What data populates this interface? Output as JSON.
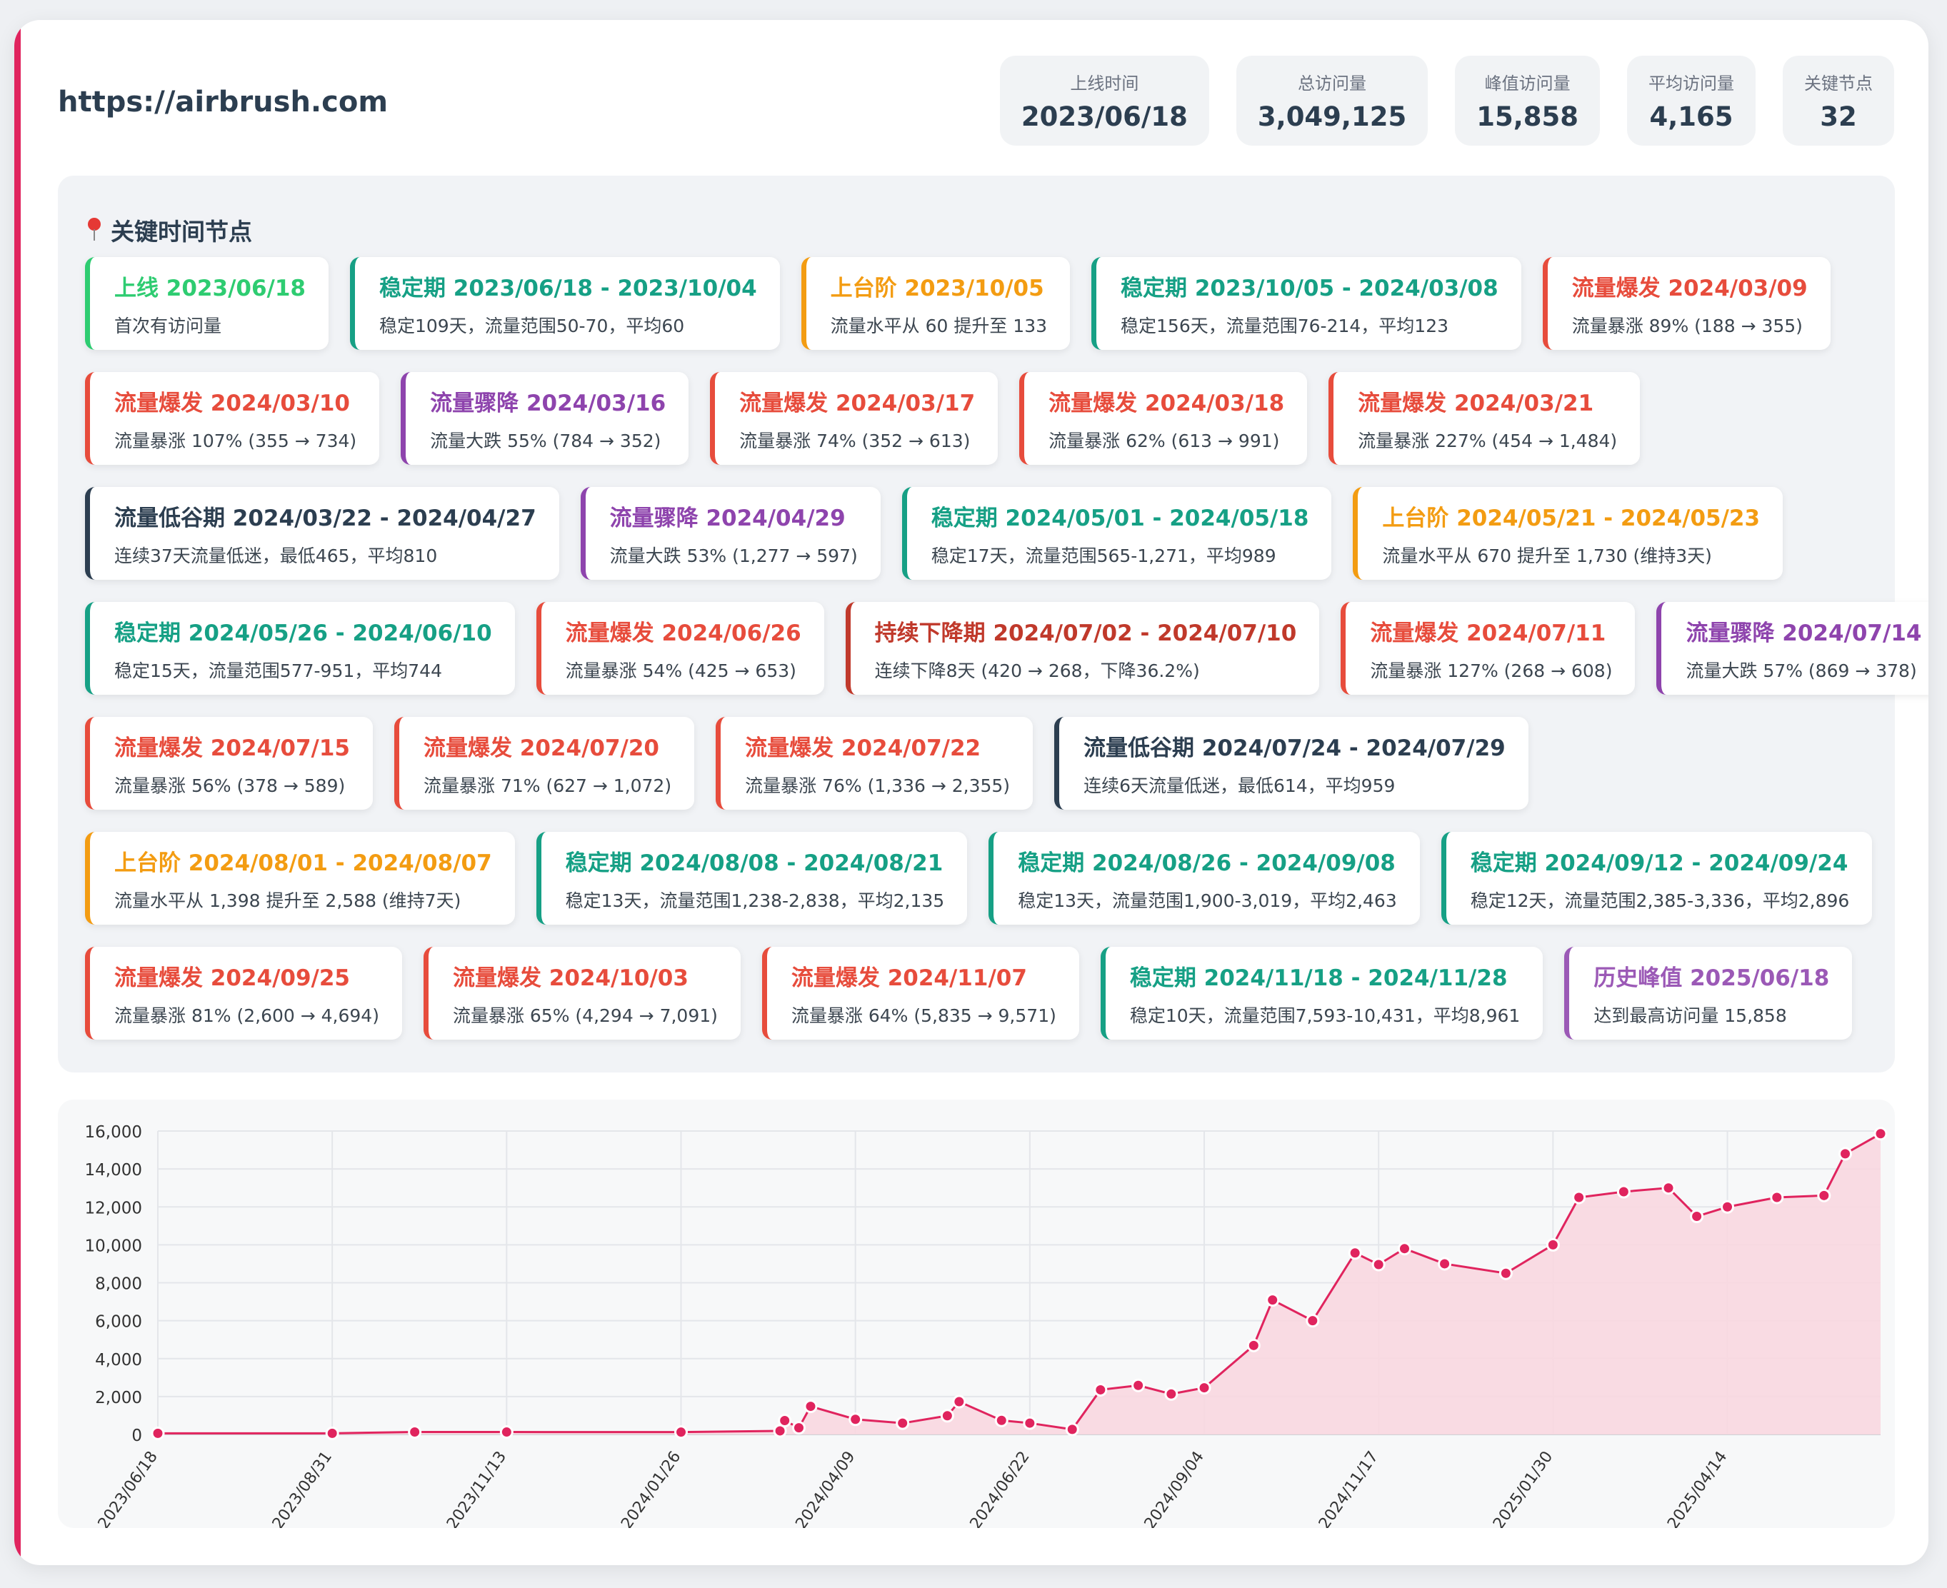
{
  "header": {
    "url": "https://airbrush.com",
    "stats": [
      {
        "label": "上线时间",
        "value": "2023/06/18"
      },
      {
        "label": "总访问量",
        "value": "3,049,125"
      },
      {
        "label": "峰值访问量",
        "value": "15,858"
      },
      {
        "label": "平均访问量",
        "value": "4,165"
      },
      {
        "label": "关键节点",
        "value": "32"
      }
    ]
  },
  "events_title": "关键时间节点",
  "events": [
    {
      "type": "launch",
      "title": "上线 2023/06/18",
      "desc": "首次有访问量"
    },
    {
      "type": "stable",
      "title": "稳定期 2023/06/18 - 2023/10/04",
      "desc": "稳定109天，流量范围50-70，平均60"
    },
    {
      "type": "step",
      "title": "上台阶 2023/10/05",
      "desc": "流量水平从 60 提升至 133"
    },
    {
      "type": "stable",
      "title": "稳定期 2023/10/05 - 2024/03/08",
      "desc": "稳定156天，流量范围76-214，平均123"
    },
    {
      "type": "burst",
      "title": "流量爆发 2024/03/09",
      "desc": "流量暴涨 89% (188 → 355)"
    },
    {
      "type": "burst",
      "title": "流量爆发 2024/03/10",
      "desc": "流量暴涨 107% (355 → 734)"
    },
    {
      "type": "drop",
      "title": "流量骤降 2024/03/16",
      "desc": "流量大跌 55% (784 → 352)"
    },
    {
      "type": "burst",
      "title": "流量爆发 2024/03/17",
      "desc": "流量暴涨 74% (352 → 613)"
    },
    {
      "type": "burst",
      "title": "流量爆发 2024/03/18",
      "desc": "流量暴涨 62% (613 → 991)"
    },
    {
      "type": "burst",
      "title": "流量爆发 2024/03/21",
      "desc": "流量暴涨 227% (454 → 1,484)"
    },
    {
      "type": "valley",
      "title": "流量低谷期 2024/03/22 - 2024/04/27",
      "desc": "连续37天流量低迷，最低465，平均810"
    },
    {
      "type": "drop",
      "title": "流量骤降 2024/04/29",
      "desc": "流量大跌 53% (1,277 → 597)"
    },
    {
      "type": "stable",
      "title": "稳定期 2024/05/01 - 2024/05/18",
      "desc": "稳定17天，流量范围565-1,271，平均989"
    },
    {
      "type": "step",
      "title": "上台阶 2024/05/21 - 2024/05/23",
      "desc": "流量水平从 670 提升至 1,730 (维持3天)"
    },
    {
      "type": "stable",
      "title": "稳定期 2024/05/26 - 2024/06/10",
      "desc": "稳定15天，流量范围577-951，平均744"
    },
    {
      "type": "burst",
      "title": "流量爆发 2024/06/26",
      "desc": "流量暴涨 54% (425 → 653)"
    },
    {
      "type": "decline",
      "title": "持续下降期 2024/07/02 - 2024/07/10",
      "desc": "连续下降8天 (420 → 268，下降36.2%)"
    },
    {
      "type": "burst",
      "title": "流量爆发 2024/07/11",
      "desc": "流量暴涨 127% (268 → 608)"
    },
    {
      "type": "drop",
      "title": "流量骤降 2024/07/14",
      "desc": "流量大跌 57% (869 → 378)"
    },
    {
      "type": "burst",
      "title": "流量爆发 2024/07/15",
      "desc": "流量暴涨 56% (378 → 589)"
    },
    {
      "type": "burst",
      "title": "流量爆发 2024/07/20",
      "desc": "流量暴涨 71% (627 → 1,072)"
    },
    {
      "type": "burst",
      "title": "流量爆发 2024/07/22",
      "desc": "流量暴涨 76% (1,336 → 2,355)"
    },
    {
      "type": "valley",
      "title": "流量低谷期 2024/07/24 - 2024/07/29",
      "desc": "连续6天流量低迷，最低614，平均959"
    },
    {
      "type": "step",
      "title": "上台阶 2024/08/01 - 2024/08/07",
      "desc": "流量水平从 1,398 提升至 2,588 (维持7天)"
    },
    {
      "type": "stable",
      "title": "稳定期 2024/08/08 - 2024/08/21",
      "desc": "稳定13天，流量范围1,238-2,838，平均2,135"
    },
    {
      "type": "stable",
      "title": "稳定期 2024/08/26 - 2024/09/08",
      "desc": "稳定13天，流量范围1,900-3,019，平均2,463"
    },
    {
      "type": "stable",
      "title": "稳定期 2024/09/12 - 2024/09/24",
      "desc": "稳定12天，流量范围2,385-3,336，平均2,896"
    },
    {
      "type": "burst",
      "title": "流量爆发 2024/09/25",
      "desc": "流量暴涨 81% (2,600 → 4,694)"
    },
    {
      "type": "burst",
      "title": "流量爆发 2024/10/03",
      "desc": "流量暴涨 65% (4,294 → 7,091)"
    },
    {
      "type": "burst",
      "title": "流量爆发 2024/11/07",
      "desc": "流量暴涨 64% (5,835 → 9,571)"
    },
    {
      "type": "stable",
      "title": "稳定期 2024/11/18 - 2024/11/28",
      "desc": "稳定10天，流量范围7,593-10,431，平均8,961"
    },
    {
      "type": "peak",
      "title": "历史峰值 2025/06/18",
      "desc": "达到最高访问量 15,858"
    }
  ],
  "colors": {
    "launch": "#2ecc71",
    "stable": "#16a085",
    "step": "#f39c12",
    "burst": "#e74c3c",
    "drop": "#8e44ad",
    "valley": "#2c3e50",
    "decline": "#c0392b",
    "peak": "#9b59b6",
    "line": "#e0245e",
    "area": "#f8d7e0"
  },
  "chart_data": {
    "type": "area",
    "ylim": [
      0,
      16000
    ],
    "y_ticks": [
      "0",
      "2,000",
      "4,000",
      "6,000",
      "8,000",
      "10,000",
      "12,000",
      "14,000",
      "16,000"
    ],
    "x_tick_labels": [
      "2023/06/18",
      "2023/08/31",
      "2023/11/13",
      "2024/01/26",
      "2024/04/09",
      "2024/06/22",
      "2024/09/04",
      "2024/11/17",
      "2025/01/30",
      "2025/04/14"
    ],
    "grid": true,
    "series": [
      {
        "x": [
          "2023/06/18",
          "2023/08/31",
          "2023/10/05",
          "2023/11/13",
          "2024/01/26",
          "2024/03/08",
          "2024/03/10",
          "2024/03/16",
          "2024/03/21",
          "2024/04/09",
          "2024/04/29",
          "2024/05/18",
          "2024/05/23",
          "2024/06/10",
          "2024/06/22",
          "2024/07/10",
          "2024/07/22",
          "2024/08/07",
          "2024/08/21",
          "2024/09/04",
          "2024/09/25",
          "2024/10/03",
          "2024/10/20",
          "2024/11/07",
          "2024/11/17",
          "2024/11/28",
          "2024/12/15",
          "2025/01/10",
          "2025/01/30",
          "2025/02/10",
          "2025/03/01",
          "2025/03/20",
          "2025/04/01",
          "2025/04/14",
          "2025/05/05",
          "2025/05/25",
          "2025/06/03",
          "2025/06/18"
        ],
        "values": [
          60,
          60,
          133,
          130,
          125,
          190,
          734,
          352,
          1484,
          800,
          597,
          989,
          1730,
          744,
          600,
          268,
          2355,
          2588,
          2135,
          2463,
          4694,
          7091,
          6000,
          9571,
          8961,
          9800,
          9000,
          8500,
          10000,
          12500,
          12800,
          13000,
          11500,
          12000,
          12500,
          12600,
          14800,
          15858
        ]
      }
    ]
  }
}
